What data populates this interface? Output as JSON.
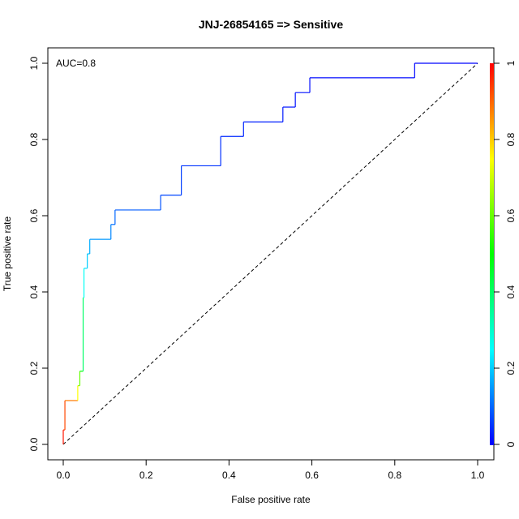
{
  "chart_data": {
    "type": "line",
    "title": "JNJ-26854165 => Sensitive",
    "xlabel": "False positive rate",
    "ylabel": "True positive rate",
    "xlim": [
      0,
      1
    ],
    "ylim": [
      0,
      1
    ],
    "x_ticks": [
      "0.0",
      "0.2",
      "0.4",
      "0.6",
      "0.8",
      "1.0"
    ],
    "y_ticks": [
      "0.0",
      "0.2",
      "0.4",
      "0.6",
      "0.8",
      "1.0"
    ],
    "annotation": "AUC=0.8",
    "grid": false,
    "legend": "none",
    "diagonal_reference": {
      "x": [
        0,
        1
      ],
      "y": [
        0,
        1
      ],
      "style": "dashed",
      "color": "#000000"
    },
    "series": [
      {
        "x": [
          0.0,
          0.0,
          0.004,
          0.004,
          0.035,
          0.035,
          0.04,
          0.04,
          0.048,
          0.048,
          0.05,
          0.05,
          0.058,
          0.058,
          0.064,
          0.064,
          0.115,
          0.115,
          0.125,
          0.125,
          0.235,
          0.235,
          0.285,
          0.285,
          0.38,
          0.38,
          0.435,
          0.435,
          0.53,
          0.53,
          0.56,
          0.56,
          0.595,
          0.595,
          0.848,
          0.848,
          1.0
        ],
        "y": [
          0.0,
          0.038,
          0.038,
          0.115,
          0.115,
          0.154,
          0.154,
          0.192,
          0.192,
          0.385,
          0.385,
          0.462,
          0.462,
          0.5,
          0.5,
          0.538,
          0.538,
          0.577,
          0.577,
          0.615,
          0.615,
          0.654,
          0.654,
          0.731,
          0.731,
          0.808,
          0.808,
          0.846,
          0.846,
          0.885,
          0.885,
          0.923,
          0.923,
          0.962,
          0.962,
          1.0,
          1.0
        ],
        "cutoff": [
          0.98,
          0.96,
          0.93,
          0.88,
          0.75,
          0.66,
          0.6,
          0.5,
          0.4,
          0.3,
          0.26,
          0.22,
          0.2,
          0.19,
          0.17,
          0.15,
          0.13,
          0.11,
          0.1,
          0.09,
          0.08,
          0.07,
          0.06,
          0.05,
          0.045,
          0.04,
          0.035,
          0.03,
          0.025,
          0.02,
          0.018,
          0.015,
          0.012,
          0.01,
          0.005,
          0.003,
          0.0
        ]
      }
    ],
    "colorbar": {
      "range": [
        0,
        1
      ],
      "ticks": [
        "0",
        "0.2",
        "0.4",
        "0.6",
        "0.8",
        "1"
      ],
      "colors": [
        "#0000ff",
        "#00ffff",
        "#00ff00",
        "#ffff00",
        "#ff0000"
      ]
    }
  }
}
